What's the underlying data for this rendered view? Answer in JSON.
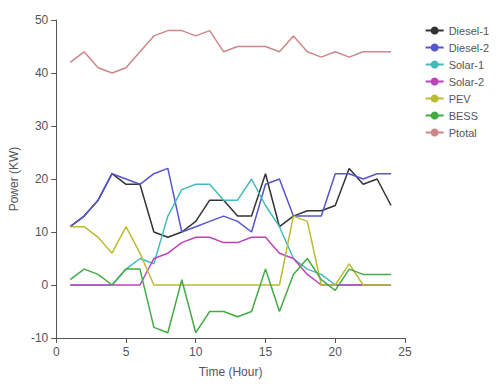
{
  "chart_data": {
    "type": "line",
    "x": [
      1,
      2,
      3,
      4,
      5,
      6,
      7,
      8,
      9,
      10,
      11,
      12,
      13,
      14,
      15,
      16,
      17,
      18,
      19,
      20,
      21,
      22,
      23,
      24
    ],
    "series": [
      {
        "name": "Diesel-1",
        "color": "#333333",
        "values": [
          11,
          13,
          16,
          21,
          19,
          19,
          10,
          9,
          10,
          12,
          16,
          16,
          13,
          13,
          21,
          11,
          13,
          14,
          14,
          15,
          22,
          19,
          20,
          15
        ]
      },
      {
        "name": "Diesel-2",
        "color": "#5555cc",
        "values": [
          11,
          13,
          16,
          21,
          20,
          19,
          21,
          22,
          10,
          11,
          12,
          13,
          12,
          10,
          19,
          20,
          13,
          13,
          13,
          21,
          21,
          20,
          21,
          21
        ]
      },
      {
        "name": "Solar-1",
        "color": "#44bbbb",
        "values": [
          0,
          0,
          0,
          0,
          3,
          5,
          4,
          13,
          18,
          19,
          19,
          16,
          16,
          20,
          15,
          11,
          5,
          3,
          2,
          0,
          0,
          0,
          0,
          0
        ]
      },
      {
        "name": "Solar-2",
        "color": "#bb44bb",
        "values": [
          0,
          0,
          0,
          0,
          0,
          0,
          5,
          6,
          8,
          9,
          9,
          8,
          8,
          9,
          9,
          6,
          5,
          2,
          0,
          0,
          0,
          0,
          0,
          0
        ]
      },
      {
        "name": "PEV",
        "color": "#bbbb33",
        "values": [
          11,
          11,
          9,
          6,
          11,
          6,
          0,
          0,
          0,
          0,
          0,
          0,
          0,
          0,
          0,
          0,
          13,
          12,
          0,
          0,
          4,
          0,
          0,
          0
        ]
      },
      {
        "name": "BESS",
        "color": "#44aa44",
        "values": [
          1,
          3,
          2,
          0,
          3,
          3,
          -8,
          -9,
          1,
          -9,
          -5,
          -5,
          -6,
          -5,
          3,
          -5,
          2,
          5,
          1,
          -1,
          3,
          2,
          2,
          2
        ]
      },
      {
        "name": "Ptotal",
        "color": "#cc8888",
        "values": [
          42,
          44,
          41,
          40,
          41,
          44,
          47,
          48,
          48,
          47,
          48,
          44,
          45,
          45,
          45,
          44,
          47,
          44,
          43,
          44,
          43,
          44,
          44,
          44
        ]
      }
    ],
    "xlabel": "Time (Hour)",
    "ylabel": "Power (KW)",
    "xlim": [
      0,
      25
    ],
    "xticks": [
      0,
      5,
      10,
      15,
      20,
      25
    ],
    "ylim": [
      -10,
      50
    ],
    "yticks": [
      -10,
      0,
      10,
      20,
      30,
      40,
      50
    ],
    "grid": false,
    "legend": "upper right"
  }
}
